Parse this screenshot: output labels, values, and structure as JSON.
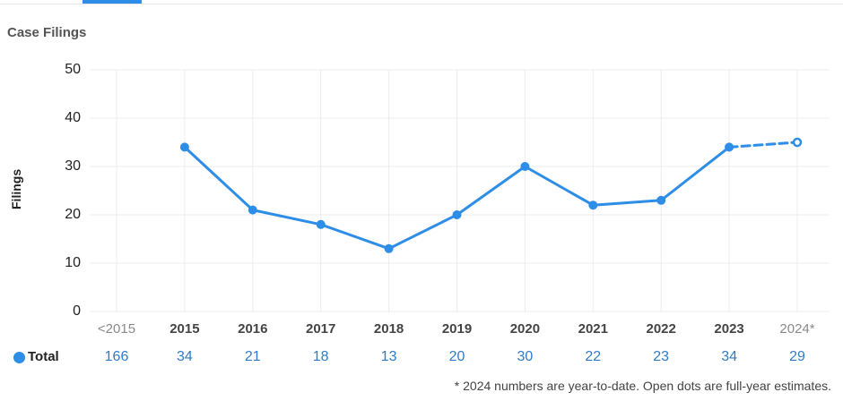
{
  "title": "Case Filings",
  "accent_color": "#2e8de6",
  "totals_row": {
    "label": "Total",
    "values": [
      "166",
      "34",
      "21",
      "18",
      "13",
      "20",
      "30",
      "22",
      "23",
      "34",
      "29"
    ]
  },
  "footnote": "* 2024 numbers are year-to-date. Open dots are full-year estimates.",
  "chart_data": {
    "type": "line",
    "title": "Case Filings",
    "xlabel": "",
    "ylabel": "Filings",
    "categories": [
      "<2015",
      "2015",
      "2016",
      "2017",
      "2018",
      "2019",
      "2020",
      "2021",
      "2022",
      "2023",
      "2024*"
    ],
    "muted_categories": [
      "<2015",
      "2024*"
    ],
    "yticks": [
      0,
      10,
      20,
      30,
      40,
      50
    ],
    "ylim": [
      0,
      50
    ],
    "grid": true,
    "series": [
      {
        "values": [
          null,
          34,
          21,
          18,
          13,
          20,
          30,
          22,
          23,
          34,
          35
        ],
        "estimated": [
          false,
          false,
          false,
          false,
          false,
          false,
          false,
          false,
          false,
          false,
          true
        ],
        "color": "#2e8de6"
      }
    ]
  }
}
